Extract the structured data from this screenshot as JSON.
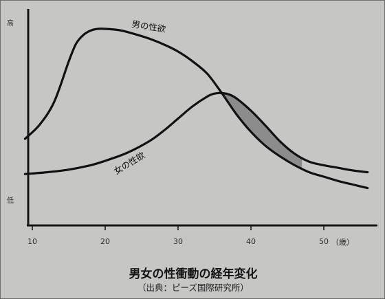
{
  "chart_data": {
    "type": "line",
    "title": "男女の性衝動の経年変化",
    "subtitle": "（出典：ピーズ国際研究所）",
    "xlabel": "",
    "ylabel": "",
    "x_unit": "（歳）",
    "xlim": [
      9,
      56
    ],
    "ylim": [
      0,
      100
    ],
    "x_ticks": [
      10,
      20,
      30,
      40,
      50
    ],
    "y_tick_labels": {
      "high": "高",
      "low": "低"
    },
    "grid": false,
    "legend": "none (curves labeled directly)",
    "shaded_region": {
      "between": [
        "男の性欲",
        "女の性欲"
      ],
      "x_range": [
        36,
        47
      ],
      "color": "#8c8c8c"
    },
    "series": [
      {
        "name": "男の性欲",
        "x": [
          9,
          11,
          13,
          15,
          16,
          17,
          18,
          19,
          20,
          22,
          24,
          26,
          28,
          30,
          32,
          34,
          36,
          38,
          40,
          42,
          44,
          46,
          48,
          50,
          52,
          54,
          56
        ],
        "y": [
          34,
          42,
          55,
          78,
          88,
          93,
          95.5,
          96.5,
          96.5,
          95.7,
          93.6,
          91,
          87.7,
          83.6,
          78,
          71,
          60,
          48,
          38,
          30,
          24,
          19,
          15,
          12.5,
          10,
          8,
          6
        ]
      },
      {
        "name": "女の性欲",
        "x": [
          9,
          12,
          15,
          18,
          20,
          23,
          26,
          28,
          30,
          32,
          34,
          35,
          36,
          37,
          38,
          40,
          42,
          44,
          46,
          48,
          50,
          52,
          54,
          56
        ],
        "y": [
          14,
          15,
          16.5,
          19,
          21.5,
          26,
          32.5,
          38.5,
          45.5,
          52.5,
          58,
          59.7,
          60,
          59.2,
          57,
          50,
          41.5,
          32.5,
          25.5,
          21,
          19,
          17.5,
          16,
          15
        ]
      }
    ]
  }
}
